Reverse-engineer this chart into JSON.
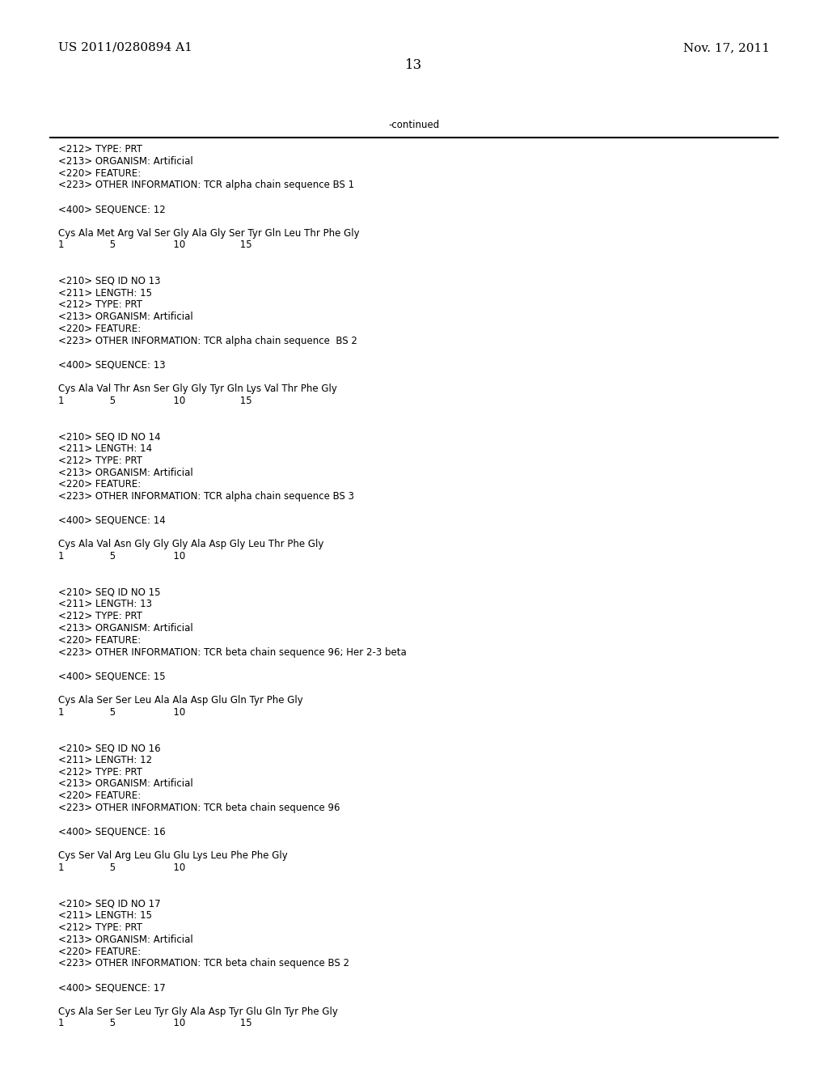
{
  "background_color": "#ffffff",
  "header_left": "US 2011/0280894 A1",
  "header_right": "Nov. 17, 2011",
  "page_number": "13",
  "continued_text": "-continued",
  "content": [
    "<212> TYPE: PRT",
    "<213> ORGANISM: Artificial",
    "<220> FEATURE:",
    "<223> OTHER INFORMATION: TCR alpha chain sequence BS 1",
    "",
    "<400> SEQUENCE: 12",
    "",
    "Cys Ala Met Arg Val Ser Gly Ala Gly Ser Tyr Gln Leu Thr Phe Gly",
    "1               5                   10                  15",
    "",
    "",
    "<210> SEQ ID NO 13",
    "<211> LENGTH: 15",
    "<212> TYPE: PRT",
    "<213> ORGANISM: Artificial",
    "<220> FEATURE:",
    "<223> OTHER INFORMATION: TCR alpha chain sequence  BS 2",
    "",
    "<400> SEQUENCE: 13",
    "",
    "Cys Ala Val Thr Asn Ser Gly Gly Tyr Gln Lys Val Thr Phe Gly",
    "1               5                   10                  15",
    "",
    "",
    "<210> SEQ ID NO 14",
    "<211> LENGTH: 14",
    "<212> TYPE: PRT",
    "<213> ORGANISM: Artificial",
    "<220> FEATURE:",
    "<223> OTHER INFORMATION: TCR alpha chain sequence BS 3",
    "",
    "<400> SEQUENCE: 14",
    "",
    "Cys Ala Val Asn Gly Gly Gly Ala Asp Gly Leu Thr Phe Gly",
    "1               5                   10",
    "",
    "",
    "<210> SEQ ID NO 15",
    "<211> LENGTH: 13",
    "<212> TYPE: PRT",
    "<213> ORGANISM: Artificial",
    "<220> FEATURE:",
    "<223> OTHER INFORMATION: TCR beta chain sequence 96; Her 2-3 beta",
    "",
    "<400> SEQUENCE: 15",
    "",
    "Cys Ala Ser Ser Leu Ala Ala Asp Glu Gln Tyr Phe Gly",
    "1               5                   10",
    "",
    "",
    "<210> SEQ ID NO 16",
    "<211> LENGTH: 12",
    "<212> TYPE: PRT",
    "<213> ORGANISM: Artificial",
    "<220> FEATURE:",
    "<223> OTHER INFORMATION: TCR beta chain sequence 96",
    "",
    "<400> SEQUENCE: 16",
    "",
    "Cys Ser Val Arg Leu Glu Glu Lys Leu Phe Phe Gly",
    "1               5                   10",
    "",
    "",
    "<210> SEQ ID NO 17",
    "<211> LENGTH: 15",
    "<212> TYPE: PRT",
    "<213> ORGANISM: Artificial",
    "<220> FEATURE:",
    "<223> OTHER INFORMATION: TCR beta chain sequence BS 2",
    "",
    "<400> SEQUENCE: 17",
    "",
    "Cys Ala Ser Ser Leu Tyr Gly Ala Asp Tyr Glu Gln Tyr Phe Gly",
    "1               5                   10                  15"
  ],
  "monospace_font": "Courier New",
  "content_fontsize": 8.5,
  "header_fontsize": 11,
  "page_num_fontsize": 12
}
